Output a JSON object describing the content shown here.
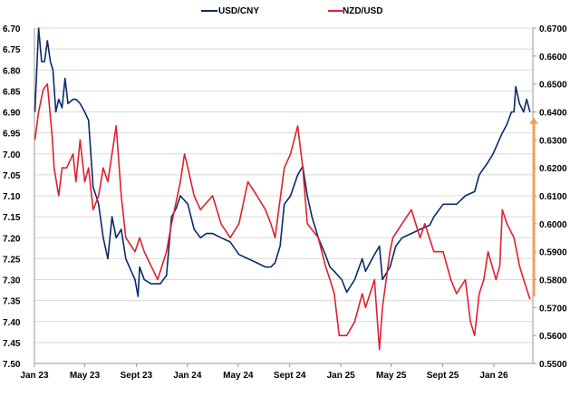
{
  "chart_data": {
    "type": "line",
    "title": "",
    "legend_position": "top",
    "grid": true,
    "x_ticks": [
      "Jan 23",
      "May 23",
      "Sept 23",
      "Jan 24",
      "May 24",
      "Sept 24",
      "Jan 25",
      "May 25",
      "Sept 25",
      "Jan 26"
    ],
    "x_tick_dates": [
      "2023-01-01",
      "2023-05-01",
      "2023-09-01",
      "2024-01-01",
      "2024-05-01",
      "2024-09-01",
      "2025-01-01",
      "2025-05-01",
      "2025-09-01",
      "2026-01-01"
    ],
    "x_range": [
      "2023-01-01",
      "2026-04-01"
    ],
    "left_axis": {
      "range": [
        6.7,
        7.5
      ],
      "inverted": true,
      "ticks": [
        "6.70",
        "6.75",
        "6.80",
        "6.85",
        "6.90",
        "6.95",
        "7.00",
        "7.05",
        "7.10",
        "7.15",
        "7.20",
        "7.25",
        "7.30",
        "7.35",
        "7.40",
        "7.45",
        "7.50"
      ]
    },
    "right_axis": {
      "range": [
        0.55,
        0.67
      ],
      "ticks": [
        "0.6700",
        "0.6600",
        "0.6500",
        "0.6400",
        "0.6300",
        "0.6200",
        "0.6100",
        "0.6000",
        "0.5900",
        "0.5800",
        "0.5700",
        "0.5600",
        "0.5500"
      ]
    },
    "series": [
      {
        "name": "USD/CNY",
        "axis": "left",
        "color": "#0a2a6b",
        "points": [
          [
            "2023-01-02",
            6.9
          ],
          [
            "2023-01-11",
            6.7
          ],
          [
            "2023-01-18",
            6.78
          ],
          [
            "2023-01-25",
            6.78
          ],
          [
            "2023-02-01",
            6.73
          ],
          [
            "2023-02-08",
            6.78
          ],
          [
            "2023-02-14",
            6.8
          ],
          [
            "2023-02-21",
            6.9
          ],
          [
            "2023-02-28",
            6.87
          ],
          [
            "2023-03-08",
            6.89
          ],
          [
            "2023-03-15",
            6.82
          ],
          [
            "2023-03-22",
            6.88
          ],
          [
            "2023-04-03",
            6.87
          ],
          [
            "2023-04-10",
            6.87
          ],
          [
            "2023-04-20",
            6.88
          ],
          [
            "2023-05-01",
            6.9
          ],
          [
            "2023-05-10",
            6.92
          ],
          [
            "2023-05-21",
            7.08
          ],
          [
            "2023-05-28",
            7.1
          ],
          [
            "2023-06-03",
            7.12
          ],
          [
            "2023-06-14",
            7.2
          ],
          [
            "2023-06-25",
            7.25
          ],
          [
            "2023-07-05",
            7.15
          ],
          [
            "2023-07-15",
            7.2
          ],
          [
            "2023-07-27",
            7.18
          ],
          [
            "2023-08-07",
            7.25
          ],
          [
            "2023-08-20",
            7.28
          ],
          [
            "2023-08-29",
            7.3
          ],
          [
            "2023-09-05",
            7.34
          ],
          [
            "2023-09-09",
            7.27
          ],
          [
            "2023-09-20",
            7.3
          ],
          [
            "2023-10-06",
            7.31
          ],
          [
            "2023-10-22",
            7.31
          ],
          [
            "2023-10-28",
            7.31
          ],
          [
            "2023-11-12",
            7.29
          ],
          [
            "2023-11-24",
            7.15
          ],
          [
            "2023-12-05",
            7.13
          ],
          [
            "2023-12-15",
            7.1
          ],
          [
            "2024-01-02",
            7.12
          ],
          [
            "2024-01-17",
            7.18
          ],
          [
            "2024-02-01",
            7.2
          ],
          [
            "2024-02-15",
            7.19
          ],
          [
            "2024-03-01",
            7.19
          ],
          [
            "2024-03-21",
            7.2
          ],
          [
            "2024-04-12",
            7.21
          ],
          [
            "2024-05-03",
            7.24
          ],
          [
            "2024-05-24",
            7.25
          ],
          [
            "2024-06-15",
            7.26
          ],
          [
            "2024-07-05",
            7.27
          ],
          [
            "2024-07-18",
            7.27
          ],
          [
            "2024-07-28",
            7.26
          ],
          [
            "2024-08-09",
            7.22
          ],
          [
            "2024-08-19",
            7.12
          ],
          [
            "2024-09-03",
            7.1
          ],
          [
            "2024-09-20",
            7.05
          ],
          [
            "2024-10-02",
            7.03
          ],
          [
            "2024-10-13",
            7.1
          ],
          [
            "2024-10-24",
            7.15
          ],
          [
            "2024-11-08",
            7.2
          ],
          [
            "2024-11-25",
            7.24
          ],
          [
            "2024-12-06",
            7.27
          ],
          [
            "2024-12-16",
            7.28
          ],
          [
            "2025-01-03",
            7.3
          ],
          [
            "2025-01-15",
            7.33
          ],
          [
            "2025-02-03",
            7.3
          ],
          [
            "2025-02-21",
            7.25
          ],
          [
            "2025-03-01",
            7.28
          ],
          [
            "2025-03-22",
            7.24
          ],
          [
            "2025-04-03",
            7.22
          ],
          [
            "2025-04-10",
            7.3
          ],
          [
            "2025-04-28",
            7.27
          ],
          [
            "2025-05-12",
            7.22
          ],
          [
            "2025-05-27",
            7.2
          ],
          [
            "2025-06-18",
            7.19
          ],
          [
            "2025-07-09",
            7.18
          ],
          [
            "2025-08-01",
            7.17
          ],
          [
            "2025-08-11",
            7.15
          ],
          [
            "2025-09-02",
            7.12
          ],
          [
            "2025-10-04",
            7.12
          ],
          [
            "2025-10-25",
            7.1
          ],
          [
            "2025-11-16",
            7.09
          ],
          [
            "2025-11-27",
            7.05
          ],
          [
            "2025-12-18",
            7.02
          ],
          [
            "2025-12-30",
            7.0
          ],
          [
            "2026-01-21",
            6.95
          ],
          [
            "2026-02-01",
            6.93
          ],
          [
            "2026-02-12",
            6.9
          ],
          [
            "2026-02-18",
            6.9
          ],
          [
            "2026-02-22",
            6.84
          ],
          [
            "2026-03-03",
            6.88
          ],
          [
            "2026-03-13",
            6.9
          ],
          [
            "2026-03-20",
            6.87
          ],
          [
            "2026-03-28",
            6.9
          ]
        ]
      },
      {
        "name": "NZD/USD",
        "axis": "right",
        "color": "#e0202e",
        "points": [
          [
            "2023-01-02",
            0.63
          ],
          [
            "2023-01-11",
            0.64
          ],
          [
            "2023-01-22",
            0.648
          ],
          [
            "2023-02-01",
            0.65
          ],
          [
            "2023-02-07",
            0.64
          ],
          [
            "2023-02-12",
            0.632
          ],
          [
            "2023-02-17",
            0.62
          ],
          [
            "2023-02-28",
            0.61
          ],
          [
            "2023-03-08",
            0.62
          ],
          [
            "2023-03-19",
            0.62
          ],
          [
            "2023-04-03",
            0.625
          ],
          [
            "2023-04-10",
            0.615
          ],
          [
            "2023-04-20",
            0.63
          ],
          [
            "2023-05-01",
            0.615
          ],
          [
            "2023-05-10",
            0.62
          ],
          [
            "2023-05-21",
            0.605
          ],
          [
            "2023-06-03",
            0.61
          ],
          [
            "2023-06-14",
            0.62
          ],
          [
            "2023-06-25",
            0.615
          ],
          [
            "2023-07-05",
            0.625
          ],
          [
            "2023-07-15",
            0.635
          ],
          [
            "2023-07-27",
            0.61
          ],
          [
            "2023-08-07",
            0.595
          ],
          [
            "2023-08-29",
            0.59
          ],
          [
            "2023-09-09",
            0.595
          ],
          [
            "2023-09-20",
            0.59
          ],
          [
            "2023-10-06",
            0.585
          ],
          [
            "2023-10-22",
            0.58
          ],
          [
            "2023-11-12",
            0.59
          ],
          [
            "2023-11-24",
            0.6
          ],
          [
            "2023-12-15",
            0.615
          ],
          [
            "2023-12-25",
            0.625
          ],
          [
            "2024-01-02",
            0.62
          ],
          [
            "2024-01-17",
            0.61
          ],
          [
            "2024-02-01",
            0.605
          ],
          [
            "2024-03-01",
            0.61
          ],
          [
            "2024-03-21",
            0.6
          ],
          [
            "2024-04-12",
            0.595
          ],
          [
            "2024-05-03",
            0.6
          ],
          [
            "2024-05-24",
            0.615
          ],
          [
            "2024-06-15",
            0.61
          ],
          [
            "2024-07-05",
            0.605
          ],
          [
            "2024-07-18",
            0.6
          ],
          [
            "2024-07-28",
            0.595
          ],
          [
            "2024-08-19",
            0.62
          ],
          [
            "2024-09-03",
            0.625
          ],
          [
            "2024-09-20",
            0.635
          ],
          [
            "2024-10-02",
            0.62
          ],
          [
            "2024-10-13",
            0.6
          ],
          [
            "2024-11-08",
            0.595
          ],
          [
            "2024-11-25",
            0.585
          ],
          [
            "2024-12-06",
            0.58
          ],
          [
            "2024-12-16",
            0.575
          ],
          [
            "2024-12-28",
            0.56
          ],
          [
            "2025-01-15",
            0.56
          ],
          [
            "2025-02-03",
            0.565
          ],
          [
            "2025-02-21",
            0.575
          ],
          [
            "2025-03-01",
            0.57
          ],
          [
            "2025-03-22",
            0.58
          ],
          [
            "2025-04-03",
            0.555
          ],
          [
            "2025-04-10",
            0.57
          ],
          [
            "2025-04-28",
            0.59
          ],
          [
            "2025-05-05",
            0.595
          ],
          [
            "2025-05-27",
            0.6
          ],
          [
            "2025-06-18",
            0.605
          ],
          [
            "2025-07-09",
            0.595
          ],
          [
            "2025-07-20",
            0.6
          ],
          [
            "2025-08-11",
            0.59
          ],
          [
            "2025-09-02",
            0.59
          ],
          [
            "2025-09-20",
            0.58
          ],
          [
            "2025-10-04",
            0.575
          ],
          [
            "2025-10-25",
            0.58
          ],
          [
            "2025-11-06",
            0.565
          ],
          [
            "2025-11-16",
            0.56
          ],
          [
            "2025-11-27",
            0.575
          ],
          [
            "2025-12-08",
            0.58
          ],
          [
            "2025-12-18",
            0.59
          ],
          [
            "2026-01-06",
            0.58
          ],
          [
            "2026-01-15",
            0.585
          ],
          [
            "2026-01-21",
            0.605
          ],
          [
            "2026-02-01",
            0.6
          ],
          [
            "2026-02-18",
            0.595
          ],
          [
            "2026-03-03",
            0.585
          ],
          [
            "2026-03-13",
            0.58
          ],
          [
            "2026-03-28",
            0.573
          ]
        ]
      }
    ],
    "annotation_arrow": {
      "axis": "right",
      "from": 0.574,
      "to": 0.638,
      "color": "#f0a05a"
    }
  }
}
